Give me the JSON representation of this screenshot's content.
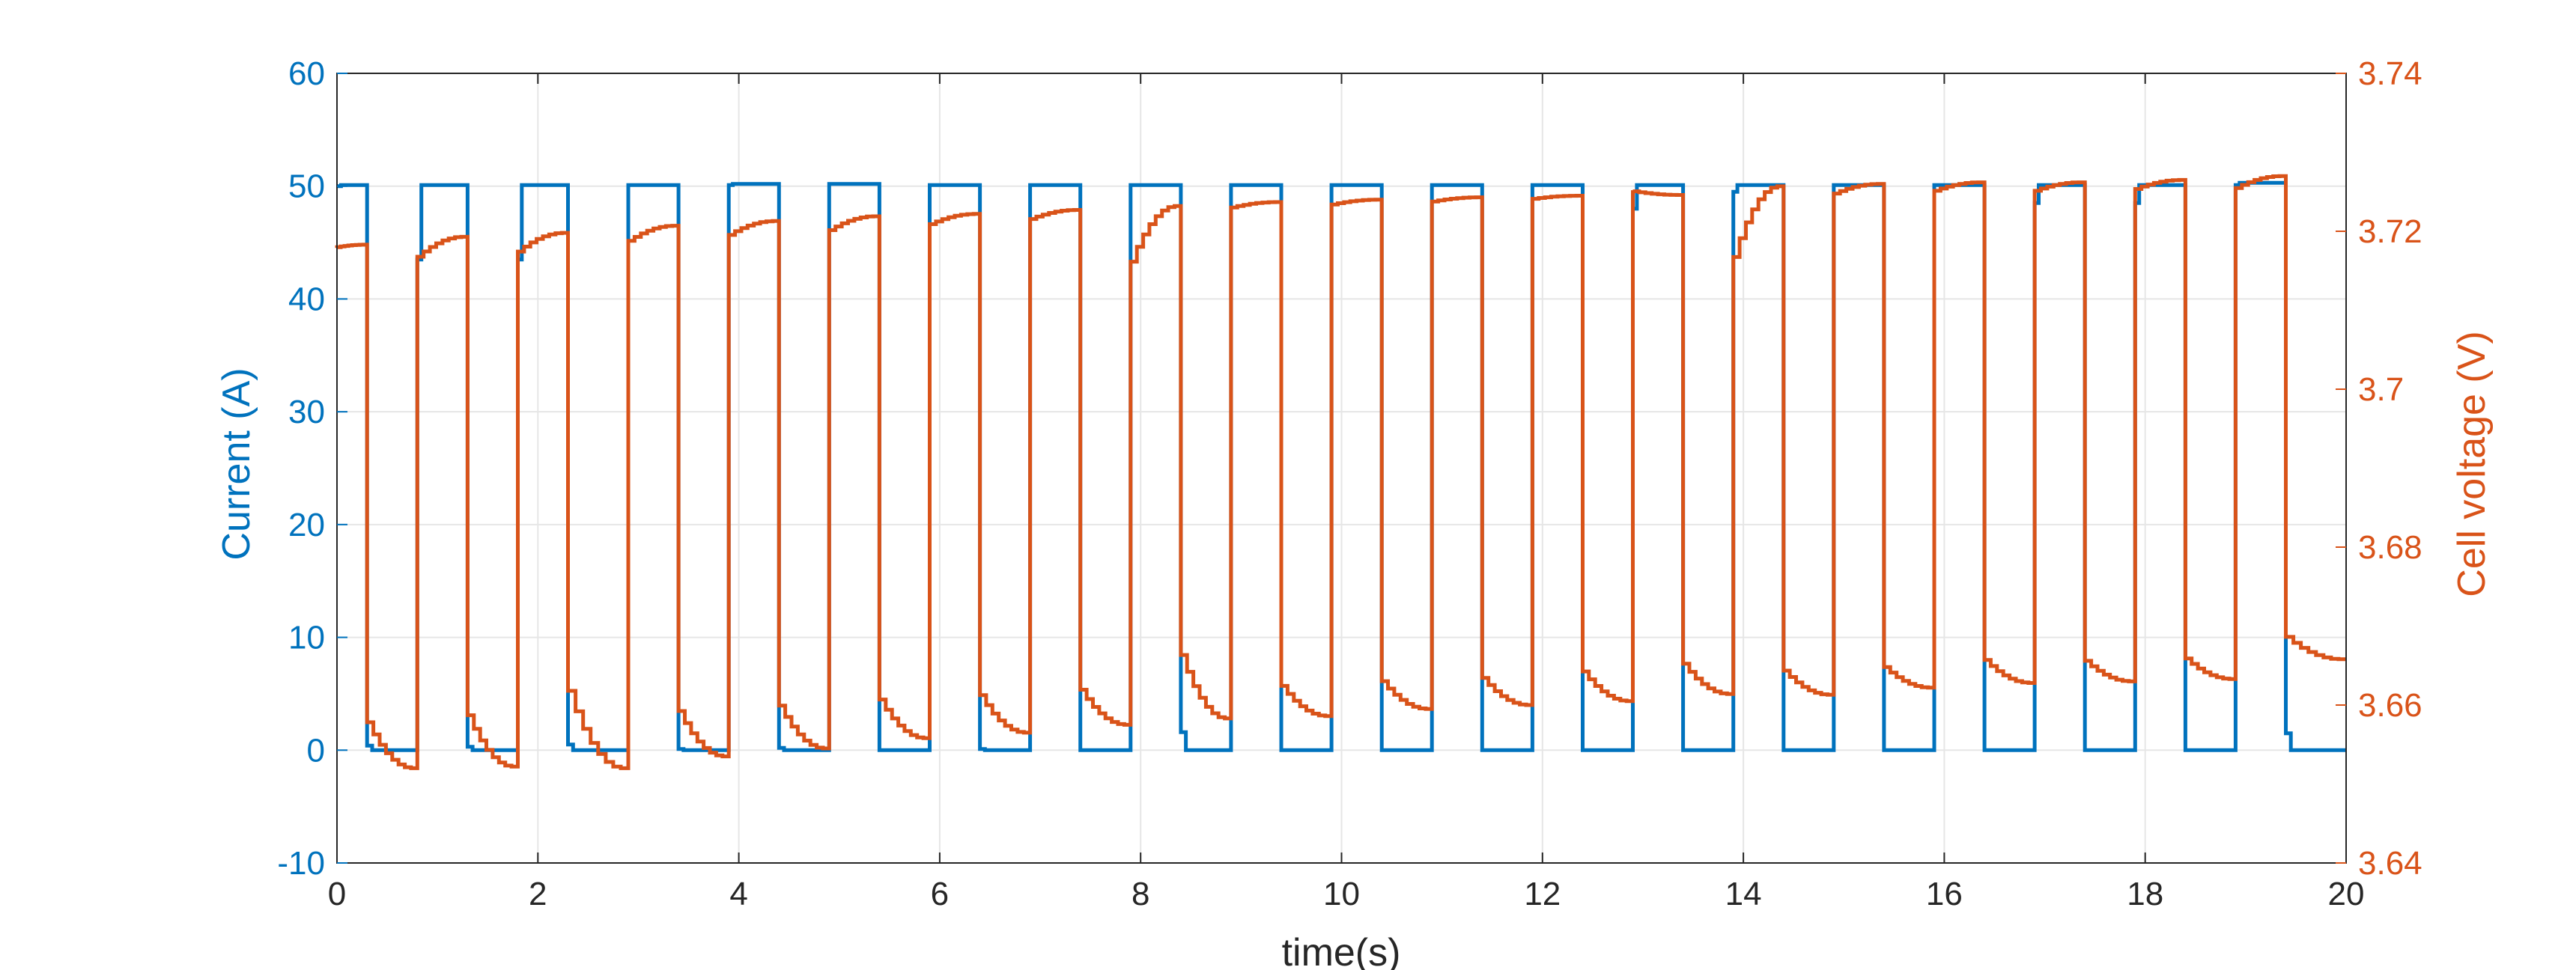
{
  "colors": {
    "current": "#0072BD",
    "voltage": "#D95319",
    "axis": "#262626",
    "grid": "#e6e6e6"
  },
  "chart_data": {
    "type": "line",
    "xlabel": "time(s)",
    "ylabel_left": "Current (A)",
    "ylabel_right": "Cell voltage (V)",
    "xlim": [
      0,
      20
    ],
    "ylim_left": [
      -10,
      60
    ],
    "ylim_right": [
      3.64,
      3.74
    ],
    "grid": true,
    "xticks": [
      "0",
      "2",
      "4",
      "6",
      "8",
      "10",
      "12",
      "14",
      "16",
      "18",
      "20"
    ],
    "yticks_left": [
      "-10",
      "0",
      "10",
      "20",
      "30",
      "40",
      "50",
      "60"
    ],
    "yticks_right": [
      "3.64",
      "3.66",
      "3.68",
      "3.7",
      "3.72",
      "3.74"
    ],
    "series": [
      {
        "axis": "left",
        "color": "#0072BD",
        "pulses": [
          {
            "on": 0.0,
            "off": 0.3,
            "edge": 50,
            "plateau": 50.1
          },
          {
            "on": 0.8,
            "off": 1.3,
            "edge": 43.5,
            "plateau": 50.1
          },
          {
            "on": 1.8,
            "off": 2.3,
            "edge": 43.5,
            "plateau": 50.1
          },
          {
            "on": 2.9,
            "off": 3.4,
            "edge": 50.1,
            "plateau": 50.1
          },
          {
            "on": 3.9,
            "off": 4.4,
            "edge": 50.1,
            "plateau": 50.2
          },
          {
            "on": 4.9,
            "off": 5.4,
            "edge": 50.2,
            "plateau": 50.2
          },
          {
            "on": 5.9,
            "off": 6.4,
            "edge": 50.1,
            "plateau": 50.1
          },
          {
            "on": 6.9,
            "off": 7.4,
            "edge": 50.1,
            "plateau": 50.1
          },
          {
            "on": 7.9,
            "off": 8.4,
            "edge": 50.1,
            "plateau": 50.1
          },
          {
            "on": 8.9,
            "off": 9.4,
            "edge": 50.1,
            "plateau": 50.1
          },
          {
            "on": 9.9,
            "off": 10.4,
            "edge": 50.1,
            "plateau": 50.1
          },
          {
            "on": 10.9,
            "off": 11.4,
            "edge": 50.1,
            "plateau": 50.1
          },
          {
            "on": 11.9,
            "off": 12.4,
            "edge": 50.1,
            "plateau": 50.1
          },
          {
            "on": 12.9,
            "off": 13.4,
            "edge": 48.0,
            "plateau": 50.1
          },
          {
            "on": 13.9,
            "off": 14.4,
            "edge": 49.5,
            "plateau": 50.1
          },
          {
            "on": 14.9,
            "off": 15.4,
            "edge": 50.1,
            "plateau": 50.1
          },
          {
            "on": 15.9,
            "off": 16.4,
            "edge": 50.1,
            "plateau": 50.1
          },
          {
            "on": 16.9,
            "off": 17.4,
            "edge": 48.5,
            "plateau": 50.1
          },
          {
            "on": 17.9,
            "off": 18.4,
            "edge": 48.5,
            "plateau": 50.1
          },
          {
            "on": 18.9,
            "off": 19.4,
            "edge": 50.1,
            "plateau": 50.3
          }
        ],
        "rest_value": 0,
        "rest_start": [
          0.4,
          0.3,
          0.5,
          0.1,
          0.2,
          0,
          0.1,
          0,
          1.6,
          0,
          0,
          0,
          0,
          0,
          0,
          0,
          0,
          0,
          0,
          1.5
        ],
        "end_x": 20
      },
      {
        "axis": "right",
        "color": "#D95319",
        "start_value": 3.7179,
        "pulse_start": [
          3.7179,
          3.716,
          3.7167,
          3.7182,
          3.719,
          3.7196,
          3.7205,
          3.7212,
          3.714,
          3.7228,
          3.7232,
          3.7236,
          3.724,
          3.7252,
          3.714,
          3.7244,
          3.7248,
          3.7248,
          3.725,
          3.725
        ],
        "pulse_end": [
          3.7183,
          3.7193,
          3.7198,
          3.7207,
          3.7213,
          3.7219,
          3.7222,
          3.7227,
          3.7232,
          3.7237,
          3.724,
          3.7243,
          3.7245,
          3.7246,
          3.7257,
          3.726,
          3.7262,
          3.7262,
          3.7265,
          3.727
        ],
        "rest_start": [
          3.6596,
          3.6607,
          3.6648,
          3.661,
          3.6616,
          3.6622,
          3.6627,
          3.6633,
          3.6688,
          3.6636,
          3.6641,
          3.6645,
          3.6654,
          3.6664,
          3.6653,
          3.6656,
          3.6666,
          3.6664,
          3.6667,
          3.6695
        ],
        "rest_end": [
          3.652,
          3.6522,
          3.652,
          3.6535,
          3.6545,
          3.6558,
          3.6565,
          3.6575,
          3.6583,
          3.6586,
          3.6595,
          3.66,
          3.6605,
          3.6614,
          3.6613,
          3.6622,
          3.6628,
          3.663,
          3.6633,
          3.6658
        ]
      }
    ]
  }
}
